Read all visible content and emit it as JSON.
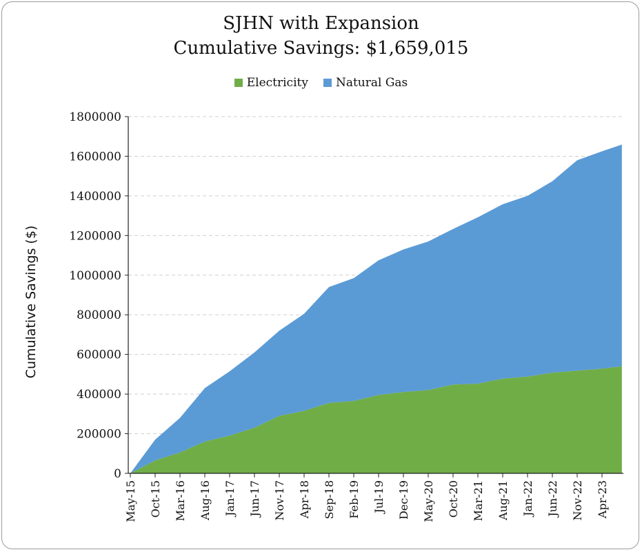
{
  "chart_data": {
    "type": "area",
    "stacked": true,
    "title": "SJHN with Expansion",
    "subtitle": "Cumulative Savings: $1,659,015",
    "xlabel": "",
    "ylabel": "Cumulative Savings ($)",
    "ylim": [
      0,
      1800000
    ],
    "yticks": [
      0,
      200000,
      400000,
      600000,
      800000,
      1000000,
      1200000,
      1400000,
      1600000,
      1800000
    ],
    "ytick_labels": [
      "0",
      "200000",
      "400000",
      "600000",
      "800000",
      "1000000",
      "1200000",
      "1400000",
      "1600000",
      "1800000"
    ],
    "xtick_labels": [
      "May-15",
      "Oct-15",
      "Mar-16",
      "Aug-16",
      "Jan-17",
      "Jun-17",
      "Nov-17",
      "Apr-18",
      "Sep-18",
      "Feb-19",
      "Jul-19",
      "Dec-19",
      "May-20",
      "Oct-20",
      "Mar-21",
      "Aug-21",
      "Jan-22",
      "Jun-22",
      "Nov-22",
      "Apr-23"
    ],
    "x_range": [
      "May-15",
      "Aug-23"
    ],
    "grid": "horizontal dashed",
    "legend": "top",
    "colors": {
      "electricity": "#70ad47",
      "natural_gas": "#5b9bd5"
    },
    "x": [
      "May-15",
      "Oct-15",
      "Mar-16",
      "Aug-16",
      "Jan-17",
      "Jun-17",
      "Nov-17",
      "Apr-18",
      "Sep-18",
      "Feb-19",
      "Jul-19",
      "Dec-19",
      "May-20",
      "Oct-20",
      "Mar-21",
      "Aug-21",
      "Jan-22",
      "Jun-22",
      "Nov-22",
      "Apr-23",
      "Aug-23"
    ],
    "series": [
      {
        "name": "Electricity",
        "key": "electricity",
        "values": [
          0,
          65000,
          105000,
          160000,
          190000,
          230000,
          290000,
          315000,
          355000,
          365000,
          395000,
          410000,
          420000,
          448000,
          452000,
          478000,
          488000,
          508000,
          518000,
          528000,
          540000
        ]
      },
      {
        "name": "Natural Gas",
        "key": "natural_gas",
        "values": [
          0,
          105000,
          175000,
          270000,
          325000,
          380000,
          430000,
          490000,
          585000,
          620000,
          680000,
          720000,
          750000,
          785000,
          840000,
          880000,
          912000,
          966000,
          1062000,
          1097000,
          1119015
        ]
      }
    ]
  }
}
